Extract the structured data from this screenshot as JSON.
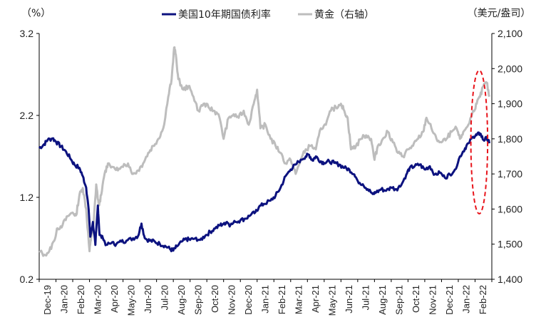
{
  "chart_data": {
    "type": "line",
    "title": "",
    "left_axis": {
      "unit_label": "（%）",
      "ticks": [
        "3.2",
        "2.2",
        "1.2",
        "0.2"
      ],
      "ylim": [
        0.2,
        3.2
      ]
    },
    "right_axis": {
      "unit_label": "（美元/盎司）",
      "ticks": [
        "2,100",
        "2,000",
        "1,900",
        "1,800",
        "1,700",
        "1,600",
        "1,500",
        "1,400"
      ],
      "ylim": [
        1400,
        2100
      ]
    },
    "x_ticks": [
      "Dec-19",
      "Jan-20",
      "Feb-20",
      "Mar-20",
      "Apr-20",
      "May-20",
      "Jun-20",
      "Jul-20",
      "Aug-20",
      "Sep-20",
      "Oct-20",
      "Nov-20",
      "Dec-20",
      "Jan-21",
      "Feb-21",
      "Mar-21",
      "Apr-21",
      "May-21",
      "Jun-21",
      "Jul-21",
      "Aug-21",
      "Sep-21",
      "Oct-21",
      "Nov-21",
      "Dec-21",
      "Jan-22",
      "Feb-22"
    ],
    "series": [
      {
        "name": "美国10年期国债利率",
        "axis": "left",
        "color": "#0c127f",
        "points": [
          [
            0,
            1.8
          ],
          [
            0.3,
            1.85
          ],
          [
            0.5,
            1.9
          ],
          [
            0.8,
            1.92
          ],
          [
            1,
            1.88
          ],
          [
            1.3,
            1.82
          ],
          [
            1.6,
            1.76
          ],
          [
            1.9,
            1.66
          ],
          [
            2.1,
            1.6
          ],
          [
            2.4,
            1.56
          ],
          [
            2.6,
            1.46
          ],
          [
            2.8,
            1.32
          ],
          [
            2.95,
            1.05
          ],
          [
            3.05,
            0.72
          ],
          [
            3.2,
            0.9
          ],
          [
            3.35,
            0.62
          ],
          [
            3.5,
            1.1
          ],
          [
            3.6,
            0.74
          ],
          [
            3.8,
            0.7
          ],
          [
            4.0,
            0.62
          ],
          [
            4.3,
            0.64
          ],
          [
            4.6,
            0.63
          ],
          [
            4.9,
            0.66
          ],
          [
            5.2,
            0.67
          ],
          [
            5.6,
            0.7
          ],
          [
            5.9,
            0.73
          ],
          [
            6.1,
            0.88
          ],
          [
            6.3,
            0.7
          ],
          [
            6.6,
            0.67
          ],
          [
            6.9,
            0.66
          ],
          [
            7.2,
            0.63
          ],
          [
            7.5,
            0.61
          ],
          [
            7.8,
            0.57
          ],
          [
            8.0,
            0.55
          ],
          [
            8.2,
            0.6
          ],
          [
            8.5,
            0.66
          ],
          [
            8.8,
            0.69
          ],
          [
            9.0,
            0.68
          ],
          [
            9.3,
            0.7
          ],
          [
            9.6,
            0.68
          ],
          [
            9.9,
            0.73
          ],
          [
            10.2,
            0.78
          ],
          [
            10.5,
            0.82
          ],
          [
            10.8,
            0.86
          ],
          [
            11.0,
            0.88
          ],
          [
            11.2,
            0.9
          ],
          [
            11.4,
            0.86
          ],
          [
            11.7,
            0.9
          ],
          [
            12.0,
            0.92
          ],
          [
            12.3,
            0.94
          ],
          [
            12.6,
            0.98
          ],
          [
            12.9,
            1.02
          ],
          [
            13.1,
            1.08
          ],
          [
            13.4,
            1.12
          ],
          [
            13.8,
            1.16
          ],
          [
            14.1,
            1.22
          ],
          [
            14.4,
            1.32
          ],
          [
            14.7,
            1.46
          ],
          [
            15.0,
            1.54
          ],
          [
            15.3,
            1.6
          ],
          [
            15.6,
            1.66
          ],
          [
            15.9,
            1.7
          ],
          [
            16.1,
            1.72
          ],
          [
            16.3,
            1.65
          ],
          [
            16.5,
            1.7
          ],
          [
            16.8,
            1.64
          ],
          [
            17.0,
            1.62
          ],
          [
            17.3,
            1.64
          ],
          [
            17.6,
            1.62
          ],
          [
            17.9,
            1.6
          ],
          [
            18.2,
            1.56
          ],
          [
            18.5,
            1.54
          ],
          [
            18.8,
            1.48
          ],
          [
            19.0,
            1.4
          ],
          [
            19.3,
            1.36
          ],
          [
            19.6,
            1.3
          ],
          [
            19.9,
            1.24
          ],
          [
            20.1,
            1.26
          ],
          [
            20.4,
            1.3
          ],
          [
            20.7,
            1.28
          ],
          [
            21.0,
            1.32
          ],
          [
            21.3,
            1.3
          ],
          [
            21.6,
            1.35
          ],
          [
            21.9,
            1.48
          ],
          [
            22.1,
            1.56
          ],
          [
            22.4,
            1.58
          ],
          [
            22.7,
            1.6
          ],
          [
            23.0,
            1.54
          ],
          [
            23.3,
            1.58
          ],
          [
            23.6,
            1.48
          ],
          [
            23.9,
            1.5
          ],
          [
            24.2,
            1.44
          ],
          [
            24.5,
            1.48
          ],
          [
            24.8,
            1.54
          ],
          [
            25.1,
            1.7
          ],
          [
            25.4,
            1.8
          ],
          [
            25.6,
            1.86
          ],
          [
            25.9,
            1.94
          ],
          [
            26.1,
            1.96
          ],
          [
            26.3,
            1.98
          ],
          [
            26.5,
            1.9
          ],
          [
            26.7,
            1.92
          ],
          [
            26.85,
            1.86
          ]
        ]
      },
      {
        "name": "黄金（右轴）",
        "axis": "right",
        "color": "#bdbdbd",
        "points": [
          [
            0,
            1480
          ],
          [
            0.3,
            1470
          ],
          [
            0.6,
            1480
          ],
          [
            0.9,
            1510
          ],
          [
            1.1,
            1545
          ],
          [
            1.4,
            1555
          ],
          [
            1.7,
            1580
          ],
          [
            2.0,
            1590
          ],
          [
            2.2,
            1582
          ],
          [
            2.4,
            1640
          ],
          [
            2.6,
            1660
          ],
          [
            2.8,
            1600
          ],
          [
            3.0,
            1480
          ],
          [
            3.1,
            1520
          ],
          [
            3.25,
            1560
          ],
          [
            3.4,
            1670
          ],
          [
            3.55,
            1610
          ],
          [
            3.7,
            1640
          ],
          [
            3.9,
            1700
          ],
          [
            4.1,
            1730
          ],
          [
            4.4,
            1720
          ],
          [
            4.7,
            1710
          ],
          [
            5.0,
            1720
          ],
          [
            5.3,
            1730
          ],
          [
            5.6,
            1700
          ],
          [
            5.9,
            1710
          ],
          [
            6.2,
            1730
          ],
          [
            6.5,
            1760
          ],
          [
            6.8,
            1780
          ],
          [
            7.1,
            1800
          ],
          [
            7.4,
            1830
          ],
          [
            7.7,
            1920
          ],
          [
            7.9,
            1970
          ],
          [
            8.05,
            2060
          ],
          [
            8.15,
            2040
          ],
          [
            8.3,
            1970
          ],
          [
            8.6,
            1940
          ],
          [
            8.9,
            1950
          ],
          [
            9.2,
            1920
          ],
          [
            9.5,
            1880
          ],
          [
            9.8,
            1900
          ],
          [
            10.1,
            1890
          ],
          [
            10.4,
            1880
          ],
          [
            10.7,
            1870
          ],
          [
            11.0,
            1800
          ],
          [
            11.3,
            1860
          ],
          [
            11.6,
            1870
          ],
          [
            11.9,
            1860
          ],
          [
            12.2,
            1880
          ],
          [
            12.5,
            1840
          ],
          [
            12.8,
            1900
          ],
          [
            13.0,
            1940
          ],
          [
            13.2,
            1830
          ],
          [
            13.5,
            1840
          ],
          [
            13.8,
            1800
          ],
          [
            14.1,
            1780
          ],
          [
            14.4,
            1760
          ],
          [
            14.7,
            1730
          ],
          [
            15.0,
            1740
          ],
          [
            15.3,
            1700
          ],
          [
            15.6,
            1740
          ],
          [
            15.9,
            1770
          ],
          [
            16.2,
            1780
          ],
          [
            16.5,
            1770
          ],
          [
            16.8,
            1830
          ],
          [
            17.1,
            1840
          ],
          [
            17.4,
            1880
          ],
          [
            17.7,
            1890
          ],
          [
            18.0,
            1900
          ],
          [
            18.2,
            1880
          ],
          [
            18.4,
            1860
          ],
          [
            18.6,
            1770
          ],
          [
            18.9,
            1780
          ],
          [
            19.2,
            1800
          ],
          [
            19.5,
            1810
          ],
          [
            19.8,
            1800
          ],
          [
            20.0,
            1740
          ],
          [
            20.2,
            1780
          ],
          [
            20.5,
            1800
          ],
          [
            20.8,
            1820
          ],
          [
            21.1,
            1790
          ],
          [
            21.4,
            1760
          ],
          [
            21.7,
            1750
          ],
          [
            22.0,
            1770
          ],
          [
            22.3,
            1780
          ],
          [
            22.6,
            1800
          ],
          [
            22.9,
            1820
          ],
          [
            23.1,
            1860
          ],
          [
            23.4,
            1830
          ],
          [
            23.7,
            1800
          ],
          [
            24.0,
            1790
          ],
          [
            24.3,
            1800
          ],
          [
            24.6,
            1820
          ],
          [
            24.9,
            1830
          ],
          [
            25.1,
            1800
          ],
          [
            25.3,
            1820
          ],
          [
            25.6,
            1840
          ],
          [
            25.9,
            1880
          ],
          [
            26.1,
            1900
          ],
          [
            26.3,
            1920
          ],
          [
            26.5,
            1950
          ],
          [
            26.7,
            1960
          ],
          [
            26.85,
            1920
          ]
        ]
      }
    ],
    "annotations": [
      {
        "type": "dashed-ellipse",
        "color": "#e8141b",
        "x_center": 26.25,
        "x_halfwidth": 0.5,
        "ylim_left": [
          1.0,
          2.75
        ]
      }
    ]
  }
}
